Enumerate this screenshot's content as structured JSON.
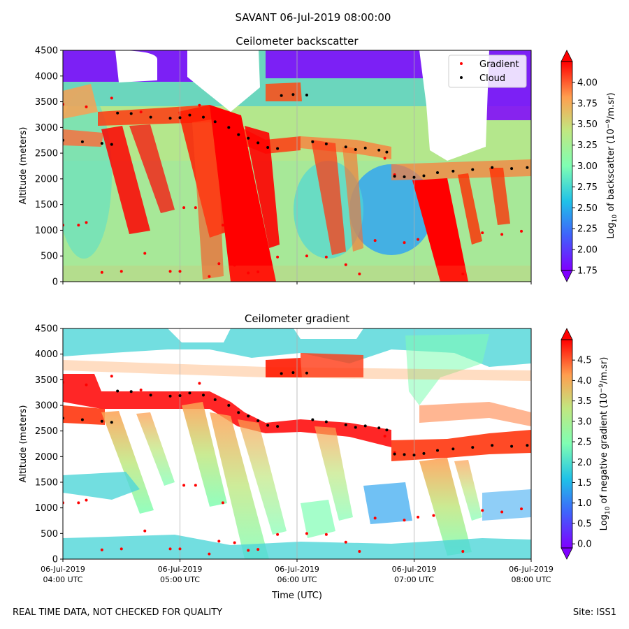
{
  "figure": {
    "title": "SAVANT 06-Jul-2019 08:00:00",
    "footer_left": "REAL TIME DATA, NOT CHECKED FOR QUALITY",
    "footer_right": "Site: ISS1"
  },
  "colors": {
    "rainbow": [
      "#7f00ff",
      "#3f63fb",
      "#1fc1e8",
      "#7ffeb3",
      "#c1e780",
      "#ff9e4f",
      "#ff0000"
    ],
    "gradient_marker": "#ff0000",
    "cloud_marker": "#000000",
    "grid": "#b0b0b0"
  },
  "chart_data": [
    {
      "type": "heatmap",
      "title": "Ceilometer backscatter",
      "xlabel": "",
      "ylabel": "Altitude (meters)",
      "xlim": [
        0,
        240
      ],
      "ylim": [
        0,
        4500
      ],
      "y_ticks": [
        0,
        500,
        1000,
        1500,
        2000,
        2500,
        3000,
        3500,
        4000,
        4500
      ],
      "x_ticks": [
        0,
        60,
        120,
        180,
        240
      ],
      "show_x_tick_labels": false,
      "grid": "vertical",
      "legend": {
        "position": "top-right",
        "entries": [
          "Gradient",
          "Cloud"
        ]
      },
      "colorbar": {
        "label": "Log10 of backscatter (10^-9/m.sr)",
        "label_main": "Log",
        "label_sub": "10",
        "label_mid": " of backscatter (10",
        "label_sup": "−9",
        "label_end": "/m.sr)",
        "range": [
          1.75,
          4.25
        ],
        "ticks": [
          "1.75",
          "2.00",
          "2.25",
          "2.50",
          "2.75",
          "3.00",
          "3.25",
          "3.50",
          "3.75",
          "4.00"
        ],
        "tick_values": [
          1.75,
          2.0,
          2.25,
          2.5,
          2.75,
          3.0,
          3.25,
          3.5,
          3.75,
          4.0
        ]
      },
      "series": [
        {
          "name": "Cloud",
          "marker": "dot",
          "points": [
            [
              0,
              2750
            ],
            [
              10,
              2720
            ],
            [
              20,
              2690
            ],
            [
              25,
              2670
            ],
            [
              28,
              3280
            ],
            [
              35,
              3270
            ],
            [
              45,
              3200
            ],
            [
              55,
              3180
            ],
            [
              60,
              3190
            ],
            [
              65,
              3240
            ],
            [
              72,
              3200
            ],
            [
              78,
              3110
            ],
            [
              85,
              3000
            ],
            [
              90,
              2860
            ],
            [
              95,
              2790
            ],
            [
              100,
              2700
            ],
            [
              105,
              2610
            ],
            [
              110,
              2590
            ],
            [
              112,
              3620
            ],
            [
              118,
              3640
            ],
            [
              125,
              3630
            ],
            [
              128,
              2720
            ],
            [
              135,
              2680
            ],
            [
              145,
              2620
            ],
            [
              150,
              2570
            ],
            [
              155,
              2600
            ],
            [
              162,
              2560
            ],
            [
              166,
              2520
            ],
            [
              170,
              2050
            ],
            [
              175,
              2040
            ],
            [
              180,
              2030
            ],
            [
              185,
              2060
            ],
            [
              192,
              2120
            ],
            [
              200,
              2150
            ],
            [
              210,
              2180
            ],
            [
              220,
              2220
            ],
            [
              230,
              2200
            ],
            [
              238,
              2220
            ]
          ]
        },
        {
          "name": "Gradient",
          "marker": "dot",
          "points": [
            [
              0,
              3450
            ],
            [
              12,
              3400
            ],
            [
              0,
              1100
            ],
            [
              8,
              1100
            ],
            [
              12,
              1150
            ],
            [
              20,
              180
            ],
            [
              30,
              200
            ],
            [
              25,
              3570
            ],
            [
              40,
              3300
            ],
            [
              42,
              550
            ],
            [
              55,
              200
            ],
            [
              60,
              200
            ],
            [
              62,
              1440
            ],
            [
              68,
              1440
            ],
            [
              70,
              3430
            ],
            [
              75,
              100
            ],
            [
              80,
              350
            ],
            [
              82,
              1100
            ],
            [
              88,
              320
            ],
            [
              95,
              170
            ],
            [
              100,
              190
            ],
            [
              110,
              480
            ],
            [
              125,
              500
            ],
            [
              135,
              480
            ],
            [
              145,
              330
            ],
            [
              152,
              150
            ],
            [
              160,
              800
            ],
            [
              165,
              2400
            ],
            [
              170,
              2080
            ],
            [
              175,
              760
            ],
            [
              182,
              820
            ],
            [
              190,
              850
            ],
            [
              205,
              150
            ],
            [
              215,
              950
            ],
            [
              225,
              920
            ],
            [
              235,
              980
            ]
          ]
        }
      ]
    },
    {
      "type": "heatmap",
      "title": "Ceilometer gradient",
      "xlabel": "Time (UTC)",
      "ylabel": "Altitude (meters)",
      "xlim": [
        0,
        240
      ],
      "ylim": [
        0,
        4500
      ],
      "y_ticks": [
        0,
        500,
        1000,
        1500,
        2000,
        2500,
        3000,
        3500,
        4000,
        4500
      ],
      "x_ticks": [
        0,
        60,
        120,
        180,
        240
      ],
      "x_tick_labels": [
        [
          "06-Jul-2019",
          "04:00 UTC"
        ],
        [
          "06-Jul-2019",
          "05:00 UTC"
        ],
        [
          "06-Jul-2019",
          "06:00 UTC"
        ],
        [
          "06-Jul-2019",
          "07:00 UTC"
        ],
        [
          "06-Jul-2019",
          "08:00 UTC"
        ]
      ],
      "grid": "vertical",
      "colorbar": {
        "label": "Log10 of negative gradient (10^-9/m.sr)",
        "label_main": "Log",
        "label_sub": "10",
        "label_mid": " of negative gradient (10",
        "label_sup": "−9",
        "label_end": "/m.sr)",
        "range": [
          -0.1,
          5.0
        ],
        "ticks": [
          "0.0",
          "0.5",
          "1.0",
          "1.5",
          "2.0",
          "2.5",
          "3.0",
          "3.5",
          "4.0",
          "4.5"
        ],
        "tick_values": [
          0.0,
          0.5,
          1.0,
          1.5,
          2.0,
          2.5,
          3.0,
          3.5,
          4.0,
          4.5
        ]
      },
      "series": [
        {
          "name": "Cloud",
          "marker": "dot",
          "points": [
            [
              0,
              2750
            ],
            [
              10,
              2720
            ],
            [
              20,
              2690
            ],
            [
              25,
              2670
            ],
            [
              28,
              3280
            ],
            [
              35,
              3270
            ],
            [
              45,
              3200
            ],
            [
              55,
              3180
            ],
            [
              60,
              3190
            ],
            [
              65,
              3240
            ],
            [
              72,
              3200
            ],
            [
              78,
              3110
            ],
            [
              85,
              3000
            ],
            [
              90,
              2860
            ],
            [
              95,
              2790
            ],
            [
              100,
              2700
            ],
            [
              105,
              2610
            ],
            [
              110,
              2590
            ],
            [
              112,
              3620
            ],
            [
              118,
              3640
            ],
            [
              125,
              3630
            ],
            [
              128,
              2720
            ],
            [
              135,
              2680
            ],
            [
              145,
              2620
            ],
            [
              150,
              2570
            ],
            [
              155,
              2600
            ],
            [
              162,
              2560
            ],
            [
              166,
              2520
            ],
            [
              170,
              2050
            ],
            [
              175,
              2040
            ],
            [
              180,
              2030
            ],
            [
              185,
              2060
            ],
            [
              192,
              2120
            ],
            [
              200,
              2150
            ],
            [
              210,
              2180
            ],
            [
              220,
              2220
            ],
            [
              230,
              2200
            ],
            [
              238,
              2220
            ]
          ]
        },
        {
          "name": "Gradient",
          "marker": "dot",
          "points": [
            [
              0,
              3450
            ],
            [
              12,
              3400
            ],
            [
              0,
              1100
            ],
            [
              8,
              1100
            ],
            [
              12,
              1150
            ],
            [
              20,
              180
            ],
            [
              30,
              200
            ],
            [
              25,
              3570
            ],
            [
              40,
              3300
            ],
            [
              42,
              550
            ],
            [
              55,
              200
            ],
            [
              60,
              200
            ],
            [
              62,
              1440
            ],
            [
              68,
              1440
            ],
            [
              70,
              3430
            ],
            [
              75,
              100
            ],
            [
              80,
              350
            ],
            [
              82,
              1100
            ],
            [
              88,
              320
            ],
            [
              95,
              170
            ],
            [
              100,
              190
            ],
            [
              110,
              480
            ],
            [
              125,
              500
            ],
            [
              135,
              480
            ],
            [
              145,
              330
            ],
            [
              152,
              150
            ],
            [
              160,
              800
            ],
            [
              165,
              2400
            ],
            [
              170,
              2080
            ],
            [
              175,
              760
            ],
            [
              182,
              820
            ],
            [
              190,
              850
            ],
            [
              205,
              150
            ],
            [
              215,
              950
            ],
            [
              225,
              920
            ],
            [
              235,
              980
            ]
          ]
        }
      ]
    }
  ]
}
